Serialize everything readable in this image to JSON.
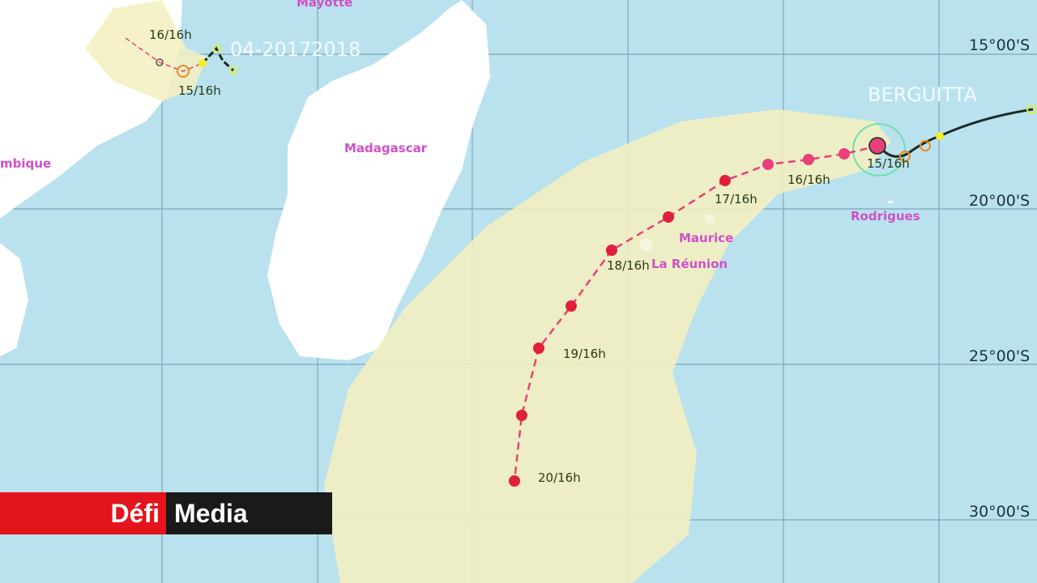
{
  "map": {
    "places": {
      "mayotte": "Mayotte",
      "mozambique": "mbique",
      "madagascar": "Madagascar",
      "maurice": "Maurice",
      "reunion": "La Réunion",
      "rodrigues": "Rodrigues"
    },
    "latitudes": [
      "15°00'S",
      "20°00'S",
      "25°00'S",
      "30°00'S"
    ],
    "storms": [
      {
        "name": "04-20172018",
        "labels": [
          "16/16h",
          "15/16h"
        ]
      },
      {
        "name": "BERGUITTA",
        "labels": [
          "15/16h",
          "16/16h",
          "17/16h",
          "18/16h",
          "19/16h",
          "20/16h"
        ]
      }
    ],
    "colors": {
      "sea": "#b9e2ee",
      "land": "#ffffff",
      "cone": "#f3f0c0",
      "forecast_track": "#e8407a",
      "past_track": "#1b2a22",
      "label": "#d050c8"
    }
  },
  "logo": {
    "part1": "Défi",
    "part2": "Media",
    "color": "#e3141b"
  }
}
